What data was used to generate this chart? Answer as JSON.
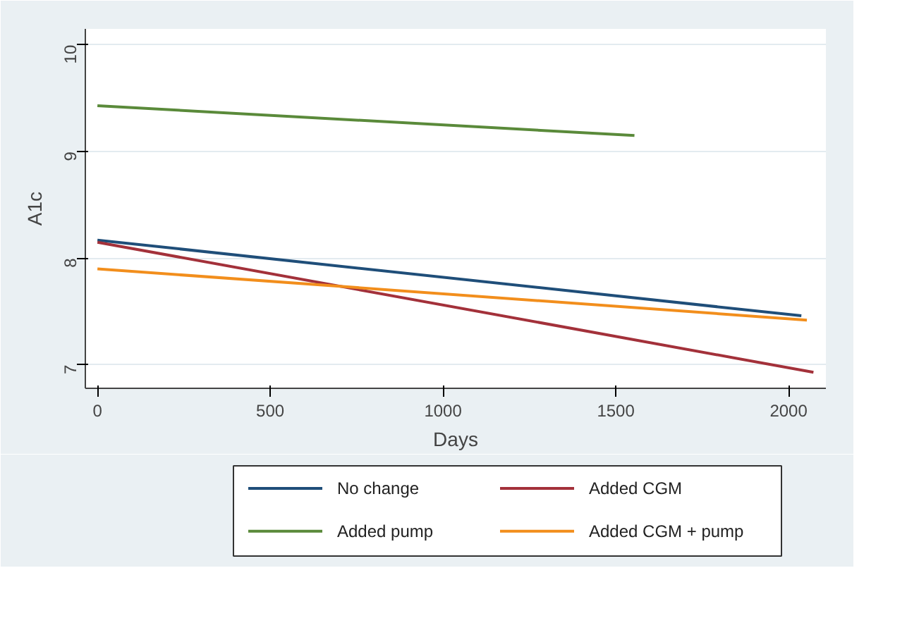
{
  "chart_data": {
    "type": "line",
    "xlabel": "Days",
    "ylabel": "A1c",
    "xlim": [
      -35,
      2108
    ],
    "ylim": [
      6.78,
      10.15
    ],
    "xticks": [
      0,
      500,
      1000,
      1500,
      2000
    ],
    "yticks": [
      7,
      8,
      9,
      10
    ],
    "grid": "y",
    "legend": "bottom",
    "marker": "none",
    "line_style": "solid",
    "series": [
      {
        "name": "No change",
        "color": "#1f4e79",
        "x": [
          0,
          2037
        ],
        "values": [
          8.17,
          7.46
        ]
      },
      {
        "name": "Added CGM",
        "color": "#a3313a",
        "x": [
          0,
          2072
        ],
        "values": [
          8.15,
          6.93
        ]
      },
      {
        "name": "Added pump",
        "color": "#5a8a3a",
        "x": [
          0,
          1554
        ],
        "values": [
          9.43,
          9.15
        ]
      },
      {
        "name": "Added CGM + pump",
        "color": "#f28e1c",
        "x": [
          0,
          2053
        ],
        "values": [
          7.9,
          7.42
        ]
      }
    ]
  }
}
